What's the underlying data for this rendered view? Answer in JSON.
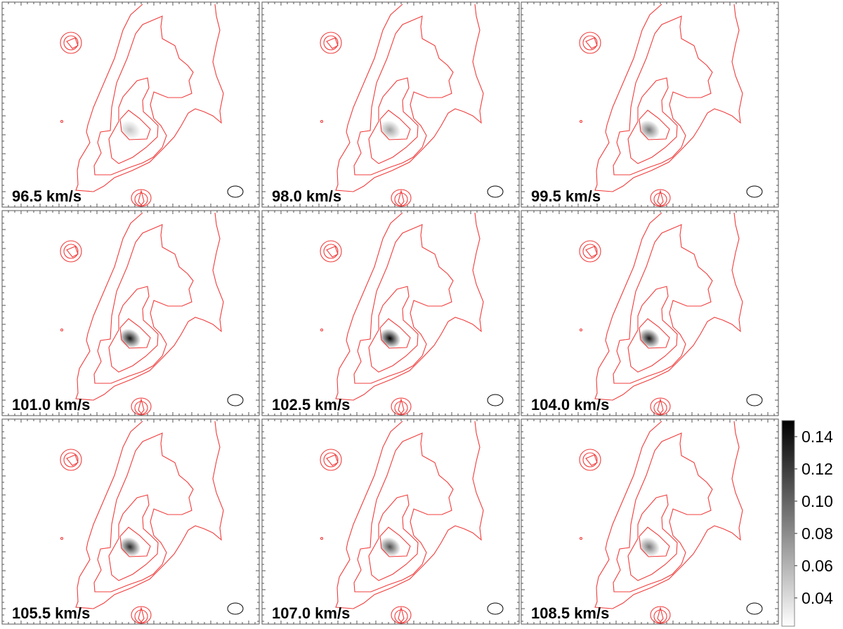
{
  "chart_data": {
    "type": "heatmap",
    "description_type": "channel-map grid",
    "grid": {
      "rows": 3,
      "cols": 3
    },
    "panels": [
      {
        "label": "96.5 km/s",
        "peak": 0.05
      },
      {
        "label": "98.0 km/s",
        "peak": 0.07
      },
      {
        "label": "99.5 km/s",
        "peak": 0.09
      },
      {
        "label": "101.0 km/s",
        "peak": 0.14
      },
      {
        "label": "102.5 km/s",
        "peak": 0.15
      },
      {
        "label": "104.0 km/s",
        "peak": 0.14
      },
      {
        "label": "105.5 km/s",
        "peak": 0.13
      },
      {
        "label": "107.0 km/s",
        "peak": 0.11
      },
      {
        "label": "108.5 km/s",
        "peak": 0.09
      }
    ],
    "colorbar": {
      "range": [
        0.0225,
        0.15
      ],
      "ticks": [
        "0.04",
        "0.06",
        "0.08",
        "0.10",
        "0.12",
        "0.14"
      ],
      "colormap": "gray_r"
    },
    "colors": {
      "contour": "#f03c3c",
      "beam": "#000000"
    }
  }
}
